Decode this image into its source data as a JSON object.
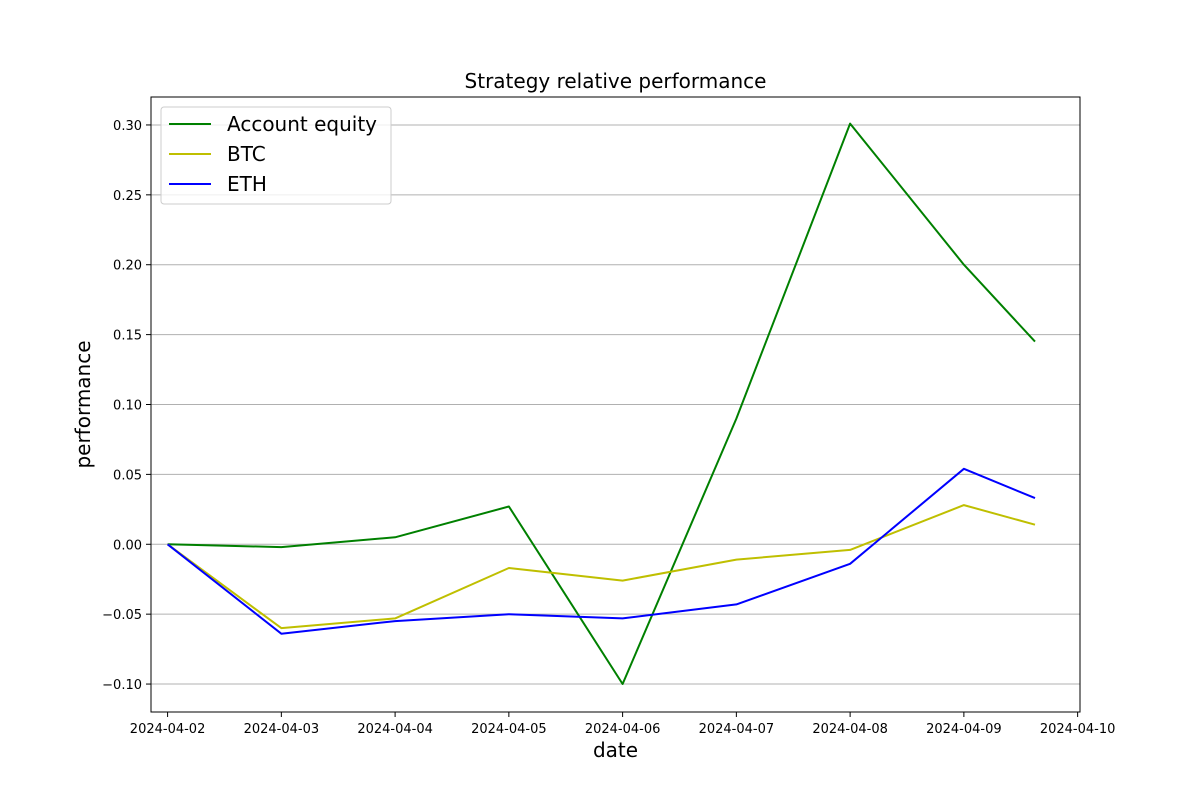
{
  "chart_data": {
    "type": "line",
    "title": "Strategy relative performance",
    "xlabel": "date",
    "ylabel": "performance",
    "x": [
      "2024-04-02",
      "2024-04-03",
      "2024-04-04",
      "2024-04-05",
      "2024-04-06",
      "2024-04-07",
      "2024-04-08",
      "2024-04-09",
      "2024-04-09 15:00"
    ],
    "xticks": [
      "2024-04-02",
      "2024-04-03",
      "2024-04-04",
      "2024-04-05",
      "2024-04-06",
      "2024-04-07",
      "2024-04-08",
      "2024-04-09",
      "2024-04-10"
    ],
    "xlim": [
      "2024-04-01 20:30",
      "2024-04-10 00:30"
    ],
    "yticks": [
      -0.1,
      -0.05,
      0.0,
      0.05,
      0.1,
      0.15,
      0.2,
      0.25,
      0.3
    ],
    "ylim": [
      -0.12,
      0.32
    ],
    "grid": "y",
    "legend_position": "top-left",
    "series": [
      {
        "name": "Account equity",
        "color": "#008000",
        "values": [
          0.0,
          -0.002,
          0.005,
          0.027,
          -0.1,
          0.09,
          0.301,
          0.2,
          0.145
        ]
      },
      {
        "name": "BTC",
        "color": "#bfbf00",
        "values": [
          0.0,
          -0.06,
          -0.053,
          -0.017,
          -0.026,
          -0.011,
          -0.004,
          0.028,
          0.014
        ]
      },
      {
        "name": "ETH",
        "color": "#0000ff",
        "values": [
          0.0,
          -0.064,
          -0.055,
          -0.05,
          -0.053,
          -0.043,
          -0.014,
          0.054,
          0.033
        ]
      }
    ]
  }
}
